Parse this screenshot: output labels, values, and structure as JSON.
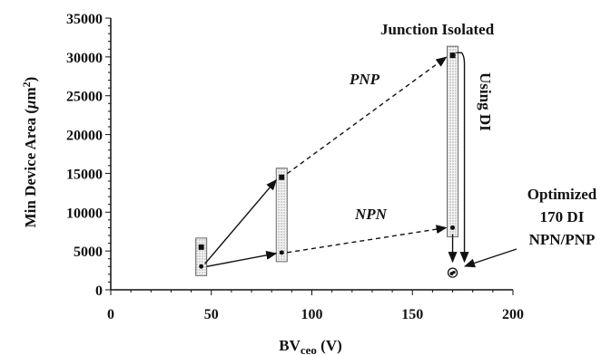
{
  "chart_data": {
    "type": "scatter",
    "xlabel_main": "BV",
    "xlabel_sub": "ceo",
    "xlabel_unit": " (V)",
    "ylabel_main": "Min Device Area (",
    "ylabel_mu": "μ",
    "ylabel_unit": "m",
    "ylabel_sup": "2",
    "ylabel_close": ")",
    "xlim": [
      0,
      200
    ],
    "ylim": [
      0,
      35000
    ],
    "xticks": [
      0,
      50,
      100,
      150,
      200
    ],
    "yticks": [
      0,
      5000,
      10000,
      15000,
      20000,
      25000,
      30000,
      35000
    ],
    "series": [
      {
        "name": "PNP",
        "marker": "square",
        "x": [
          45,
          85,
          170
        ],
        "y": [
          5500,
          14500,
          30200
        ]
      },
      {
        "name": "NPN",
        "marker": "circle",
        "x": [
          45,
          85,
          170
        ],
        "y": [
          3000,
          4800,
          8000
        ]
      }
    ],
    "optimized_point": {
      "x": 170,
      "y": 2200
    },
    "annotations": {
      "pnp": "PNP",
      "npn": "NPN",
      "junction": "Junction Isolated",
      "using_di": "Using DI",
      "optimized_1": "Optimized",
      "optimized_2": "170 DI",
      "optimized_3": "NPN/PNP"
    }
  }
}
